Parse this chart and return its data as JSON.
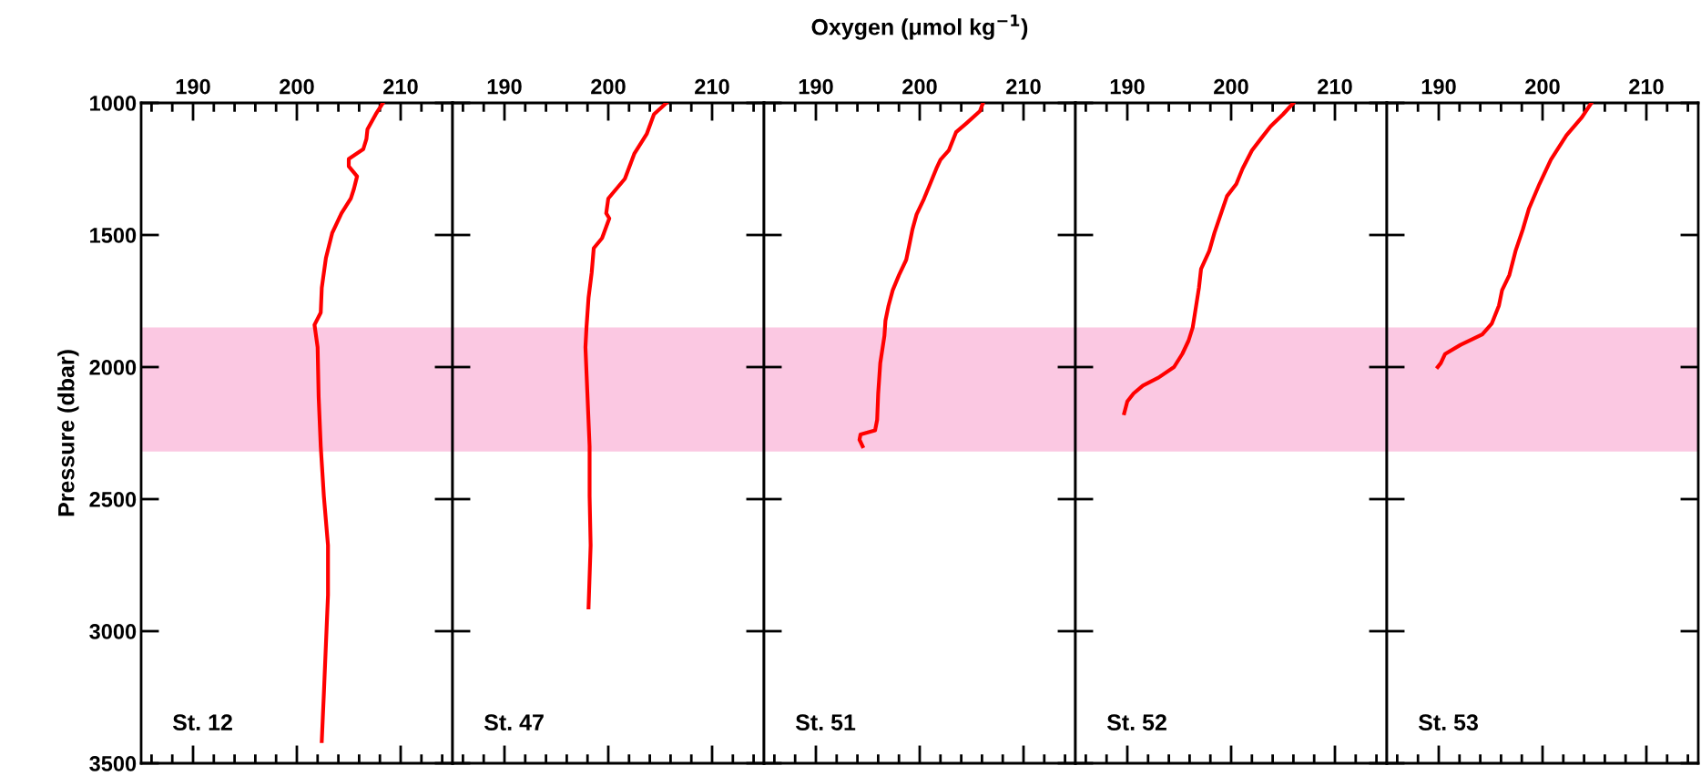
{
  "chart_data": [
    {
      "type": "line",
      "ylabel": "Pressure (dbar)",
      "annotations": [
        "St. 12"
      ],
      "xlim": [
        185,
        215
      ],
      "xticks": [
        190,
        200,
        210,
        {
          "value": 186,
          "label": null
        },
        {
          "value": 188,
          "label": null
        },
        {
          "value": 192,
          "label": null
        },
        {
          "value": 194,
          "label": null
        },
        {
          "value": 196,
          "label": null
        },
        {
          "value": 198,
          "label": null
        },
        {
          "value": 202,
          "label": null
        },
        {
          "value": 204,
          "label": null
        },
        {
          "value": 206,
          "label": null
        },
        {
          "value": 208,
          "label": null
        },
        {
          "value": 212,
          "label": null
        },
        {
          "value": 214,
          "label": null
        }
      ],
      "ylim": [
        3500,
        1000
      ],
      "yticks": [
        1000,
        1500,
        2000,
        2500,
        3000,
        3500
      ],
      "bands": [
        {
          "axis": "y",
          "from": 1850,
          "to": 2320,
          "color": "#fbc8e2"
        }
      ],
      "series": [
        {
          "color": "#ff0000",
          "x": [
            208.3,
            207.6,
            206.8,
            206.7,
            206.4,
            205.0,
            205.0,
            205.8,
            205.5,
            205.2,
            204.3,
            203.4,
            202.8,
            202.4,
            202.3,
            201.7,
            202.0,
            202.1,
            202.3,
            202.6,
            203.0,
            203.0,
            202.8,
            202.6,
            202.4
          ],
          "values": [
            1000,
            1043,
            1100,
            1137,
            1175,
            1212,
            1240,
            1278,
            1325,
            1362,
            1418,
            1493,
            1587,
            1700,
            1794,
            1840,
            1925,
            2113,
            2300,
            2488,
            2675,
            2863,
            3050,
            3238,
            3416
          ]
        }
      ]
    },
    {
      "type": "line",
      "annotations": [
        "St. 47"
      ],
      "tick_labels": "x",
      "xlim": [
        185,
        215
      ],
      "xticks": [
        190,
        200,
        210,
        {
          "value": 186,
          "label": null
        },
        {
          "value": 188,
          "label": null
        },
        {
          "value": 192,
          "label": null
        },
        {
          "value": 194,
          "label": null
        },
        {
          "value": 196,
          "label": null
        },
        {
          "value": 198,
          "label": null
        },
        {
          "value": 202,
          "label": null
        },
        {
          "value": 204,
          "label": null
        },
        {
          "value": 206,
          "label": null
        },
        {
          "value": 208,
          "label": null
        },
        {
          "value": 212,
          "label": null
        },
        {
          "value": 214,
          "label": null
        }
      ],
      "ylim": [
        3500,
        1000
      ],
      "yticks": [
        1000,
        1500,
        2000,
        2500,
        3000,
        3500
      ],
      "bands": [
        {
          "axis": "y",
          "from": 1850,
          "to": 2320,
          "color": "#fbc8e2"
        }
      ],
      "series": [
        {
          "color": "#ff0000",
          "x": [
            205.6,
            204.4,
            203.7,
            202.5,
            201.6,
            200.4,
            200.0,
            199.8,
            200.1,
            199.4,
            198.6,
            198.4,
            198.1,
            197.9,
            197.8,
            198.0,
            198.2,
            198.2,
            198.3,
            198.1
          ],
          "values": [
            1000,
            1043,
            1118,
            1193,
            1287,
            1343,
            1362,
            1418,
            1437,
            1512,
            1550,
            1643,
            1737,
            1850,
            1925,
            2113,
            2300,
            2488,
            2675,
            2910
          ]
        }
      ]
    },
    {
      "type": "line",
      "xlabel": "Oxygen (μmol kg$^{−1}$)",
      "annotations": [
        "St. 51"
      ],
      "tick_labels": "x",
      "xlim": [
        185,
        215
      ],
      "xticks": [
        190,
        200,
        210,
        {
          "value": 186,
          "label": null
        },
        {
          "value": 188,
          "label": null
        },
        {
          "value": 192,
          "label": null
        },
        {
          "value": 194,
          "label": null
        },
        {
          "value": 196,
          "label": null
        },
        {
          "value": 198,
          "label": null
        },
        {
          "value": 202,
          "label": null
        },
        {
          "value": 204,
          "label": null
        },
        {
          "value": 206,
          "label": null
        },
        {
          "value": 208,
          "label": null
        },
        {
          "value": 212,
          "label": null
        },
        {
          "value": 214,
          "label": null
        }
      ],
      "ylim": [
        3500,
        1000
      ],
      "yticks": [
        1000,
        1500,
        2000,
        2500,
        3000,
        3500
      ],
      "bands": [
        {
          "axis": "y",
          "from": 1850,
          "to": 2320,
          "color": "#fbc8e2"
        }
      ],
      "series": [
        {
          "color": "#ff0000",
          "x": [
            206.1,
            205.8,
            204.5,
            203.5,
            202.8,
            202.0,
            201.6,
            201.0,
            200.4,
            199.7,
            199.3,
            199.0,
            198.7,
            198.0,
            197.4,
            197.0,
            196.7,
            196.6,
            196.2,
            196.0,
            195.9,
            195.7,
            194.3,
            194.2,
            194.5
          ],
          "values": [
            1000,
            1031,
            1077,
            1111,
            1180,
            1215,
            1249,
            1307,
            1364,
            1422,
            1479,
            1537,
            1594,
            1652,
            1709,
            1767,
            1824,
            1882,
            1985,
            2100,
            2200,
            2240,
            2255,
            2275,
            2300
          ]
        }
      ]
    },
    {
      "type": "line",
      "annotations": [
        "St. 52"
      ],
      "tick_labels": "x",
      "xlim": [
        185,
        215
      ],
      "xticks": [
        190,
        200,
        210,
        {
          "value": 186,
          "label": null
        },
        {
          "value": 188,
          "label": null
        },
        {
          "value": 192,
          "label": null
        },
        {
          "value": 194,
          "label": null
        },
        {
          "value": 196,
          "label": null
        },
        {
          "value": 198,
          "label": null
        },
        {
          "value": 202,
          "label": null
        },
        {
          "value": 204,
          "label": null
        },
        {
          "value": 206,
          "label": null
        },
        {
          "value": 208,
          "label": null
        },
        {
          "value": 212,
          "label": null
        },
        {
          "value": 214,
          "label": null
        }
      ],
      "ylim": [
        3500,
        1000
      ],
      "yticks": [
        1000,
        1500,
        2000,
        2500,
        3000,
        3500
      ],
      "bands": [
        {
          "axis": "y",
          "from": 1850,
          "to": 2320,
          "color": "#fbc8e2"
        }
      ],
      "series": [
        {
          "color": "#ff0000",
          "x": [
            206.0,
            205.0,
            203.8,
            202.9,
            202.0,
            201.1,
            200.5,
            199.6,
            199.0,
            198.4,
            197.9,
            197.1,
            196.9,
            196.5,
            196.3,
            195.9,
            195.3,
            194.5,
            193.0,
            191.5,
            190.6,
            190.0,
            189.7
          ],
          "values": [
            1000,
            1043,
            1089,
            1134,
            1180,
            1249,
            1307,
            1353,
            1422,
            1491,
            1560,
            1629,
            1700,
            1800,
            1850,
            1900,
            1950,
            2000,
            2040,
            2070,
            2100,
            2130,
            2175
          ]
        }
      ]
    },
    {
      "type": "line",
      "annotations": [
        "St. 53"
      ],
      "tick_labels": "x",
      "xlim": [
        185,
        215
      ],
      "xticks": [
        190,
        200,
        210,
        {
          "value": 186,
          "label": null
        },
        {
          "value": 188,
          "label": null
        },
        {
          "value": 192,
          "label": null
        },
        {
          "value": 194,
          "label": null
        },
        {
          "value": 196,
          "label": null
        },
        {
          "value": 198,
          "label": null
        },
        {
          "value": 202,
          "label": null
        },
        {
          "value": 204,
          "label": null
        },
        {
          "value": 206,
          "label": null
        },
        {
          "value": 208,
          "label": null
        },
        {
          "value": 212,
          "label": null
        },
        {
          "value": 214,
          "label": null
        }
      ],
      "ylim": [
        3500,
        1000
      ],
      "yticks": [
        1000,
        1500,
        2000,
        2500,
        3000,
        3500
      ],
      "bands": [
        {
          "axis": "y",
          "from": 1850,
          "to": 2320,
          "color": "#fbc8e2"
        }
      ],
      "series": [
        {
          "color": "#ff0000",
          "x": [
            204.7,
            203.8,
            202.3,
            200.8,
            199.7,
            198.7,
            198.1,
            197.4,
            196.8,
            196.1,
            195.8,
            195.1,
            194.2,
            192.1,
            190.6,
            190.2,
            189.9
          ],
          "values": [
            1000,
            1054,
            1123,
            1215,
            1307,
            1399,
            1479,
            1560,
            1652,
            1709,
            1767,
            1836,
            1876,
            1916,
            1951,
            1985,
            2000
          ]
        }
      ]
    }
  ]
}
